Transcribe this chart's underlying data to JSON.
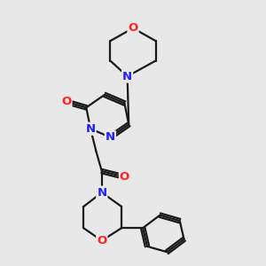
{
  "bg_color": "#e8e8e8",
  "bond_color": "#1a1a1a",
  "nitrogen_color": "#2020ff",
  "oxygen_color": "#ff2020",
  "line_width": 1.6,
  "font_size_atom": 9.5,
  "fig_width": 3.0,
  "fig_height": 3.0,
  "dpi": 100,
  "xlim": [
    0.0,
    7.0
  ],
  "ylim": [
    0.2,
    9.5
  ]
}
